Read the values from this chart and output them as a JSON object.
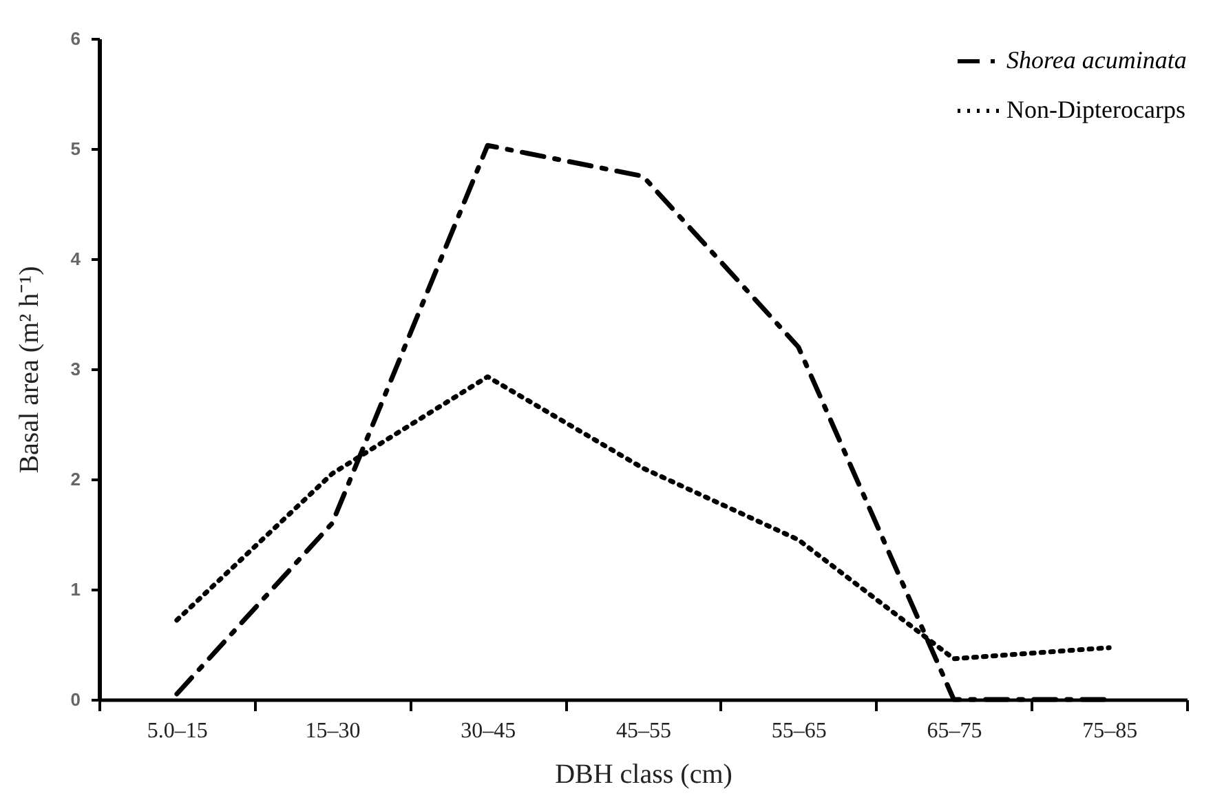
{
  "chart_data": {
    "type": "line",
    "xlabel": "DBH class (cm)",
    "ylabel": "Basal area (m² h⁻¹)",
    "categories": [
      "5.0–15",
      "15–30",
      "30–45",
      "45–55",
      "55–65",
      "65–75",
      "75–85"
    ],
    "series": [
      {
        "name": "Shorea acuminata",
        "color": "#000000",
        "line_style": "dashdot",
        "values": [
          0.05,
          1.6,
          5.03,
          4.75,
          3.2,
          0,
          0
        ]
      },
      {
        "name": "Non-Dipterocarps",
        "color": "#000000",
        "line_style": "dotted",
        "values": [
          0.72,
          2.05,
          2.93,
          2.1,
          1.45,
          0.37,
          0.47
        ]
      }
    ],
    "ylim": [
      0,
      6
    ],
    "yticks": [
      0,
      1,
      2,
      3,
      4,
      5,
      6
    ],
    "grid": false,
    "legend": "top right",
    "marker": "none"
  }
}
